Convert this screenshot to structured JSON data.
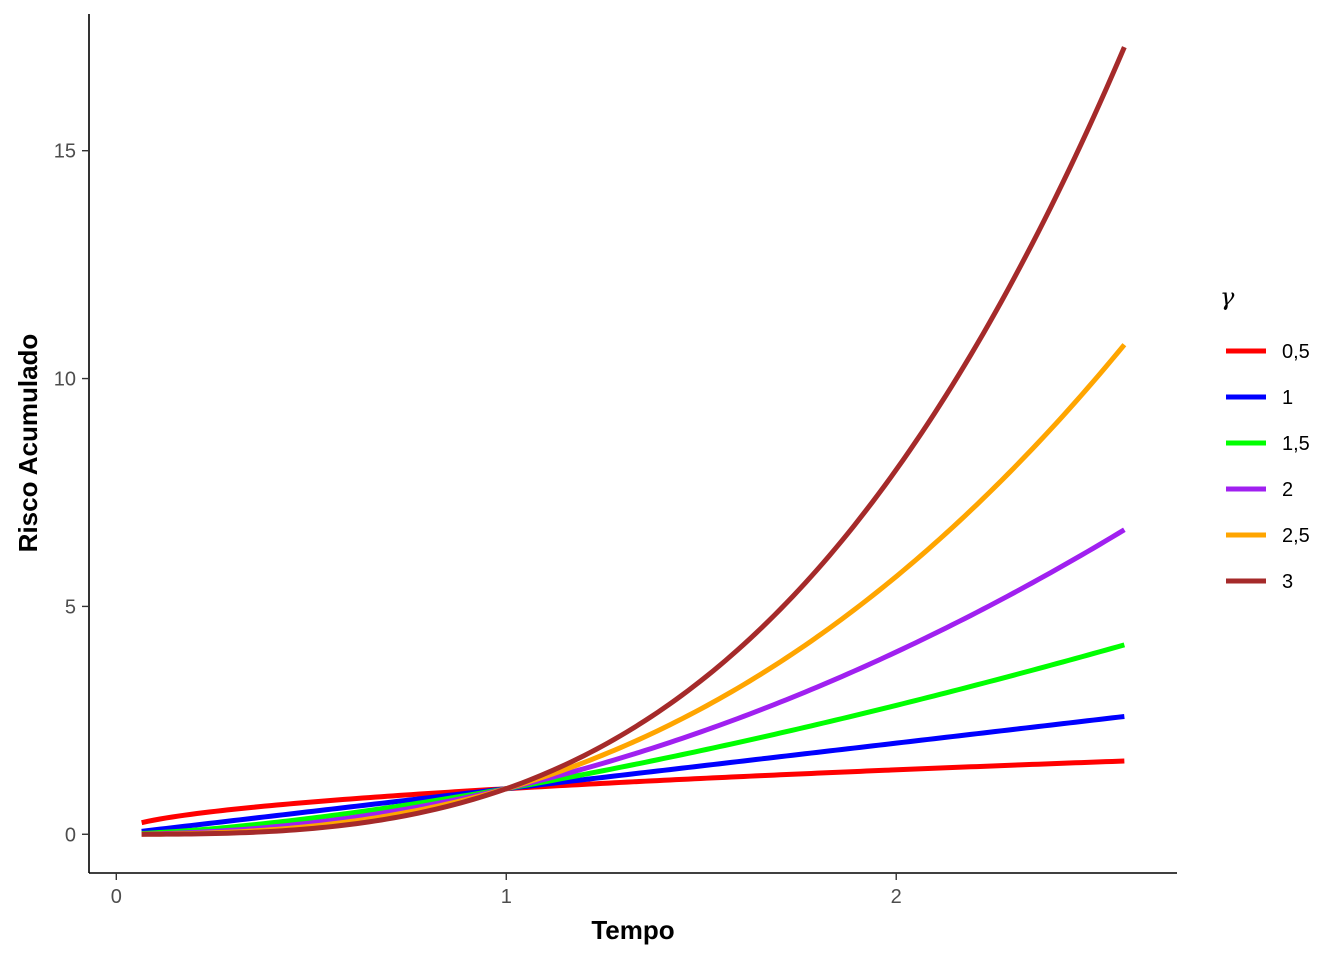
{
  "chart_data": {
    "type": "line",
    "title": "",
    "xlabel": "Tempo",
    "ylabel": "Risco Acumulado",
    "xlim": [
      -0.07,
      2.72
    ],
    "ylim": [
      -0.85,
      18.0
    ],
    "xticks": [
      {
        "value": 0,
        "label": "0"
      },
      {
        "value": 1,
        "label": "1"
      },
      {
        "value": 2,
        "label": "2"
      }
    ],
    "yticks": [
      {
        "value": 0,
        "label": "0"
      },
      {
        "value": 5,
        "label": "5"
      },
      {
        "value": 10,
        "label": "10"
      },
      {
        "value": 15,
        "label": "15"
      }
    ],
    "grid": false,
    "legend": {
      "title": "γ",
      "placement": "right"
    },
    "x_range": [
      0.065,
      2.585
    ],
    "series": [
      {
        "name": "0,5",
        "gamma": 0.5,
        "color": "#ff0000",
        "x": [
          0.065,
          0.25,
          0.5,
          0.75,
          1.0,
          1.25,
          1.5,
          1.75,
          2.0,
          2.25,
          2.5,
          2.585
        ],
        "values": [
          0.255,
          0.5,
          0.707,
          0.866,
          1.0,
          1.118,
          1.225,
          1.323,
          1.414,
          1.5,
          1.581,
          1.608
        ]
      },
      {
        "name": "1",
        "gamma": 1,
        "color": "#0000ff",
        "x": [
          0.065,
          0.25,
          0.5,
          0.75,
          1.0,
          1.25,
          1.5,
          1.75,
          2.0,
          2.25,
          2.5,
          2.585
        ],
        "values": [
          0.065,
          0.25,
          0.5,
          0.75,
          1.0,
          1.25,
          1.5,
          1.75,
          2.0,
          2.25,
          2.5,
          2.585
        ]
      },
      {
        "name": "1,5",
        "gamma": 1.5,
        "color": "#00ff00",
        "x": [
          0.065,
          0.25,
          0.5,
          0.75,
          1.0,
          1.25,
          1.5,
          1.75,
          2.0,
          2.25,
          2.5,
          2.585
        ],
        "values": [
          0.017,
          0.125,
          0.354,
          0.65,
          1.0,
          1.398,
          1.837,
          2.315,
          2.828,
          3.375,
          3.953,
          4.156
        ]
      },
      {
        "name": "2",
        "gamma": 2,
        "color": "#a020f0",
        "x": [
          0.065,
          0.25,
          0.5,
          0.75,
          1.0,
          1.25,
          1.5,
          1.75,
          2.0,
          2.25,
          2.5,
          2.585
        ],
        "values": [
          0.004,
          0.063,
          0.25,
          0.563,
          1.0,
          1.563,
          2.25,
          3.063,
          4.0,
          5.063,
          6.25,
          6.682
        ]
      },
      {
        "name": "2,5",
        "gamma": 2.5,
        "color": "#ffa500",
        "x": [
          0.065,
          0.25,
          0.5,
          0.75,
          1.0,
          1.25,
          1.5,
          1.75,
          2.0,
          2.25,
          2.5,
          2.585
        ],
        "values": [
          0.001,
          0.031,
          0.177,
          0.487,
          1.0,
          1.747,
          2.756,
          4.051,
          5.657,
          7.594,
          9.882,
          10.744
        ]
      },
      {
        "name": "3",
        "gamma": 3,
        "color": "#a52a2a",
        "x": [
          0.065,
          0.25,
          0.5,
          0.75,
          1.0,
          1.25,
          1.5,
          1.75,
          2.0,
          2.25,
          2.5,
          2.585
        ],
        "values": [
          0.0003,
          0.016,
          0.125,
          0.422,
          1.0,
          1.953,
          3.375,
          5.359,
          8.0,
          11.391,
          15.625,
          17.274
        ]
      }
    ]
  }
}
